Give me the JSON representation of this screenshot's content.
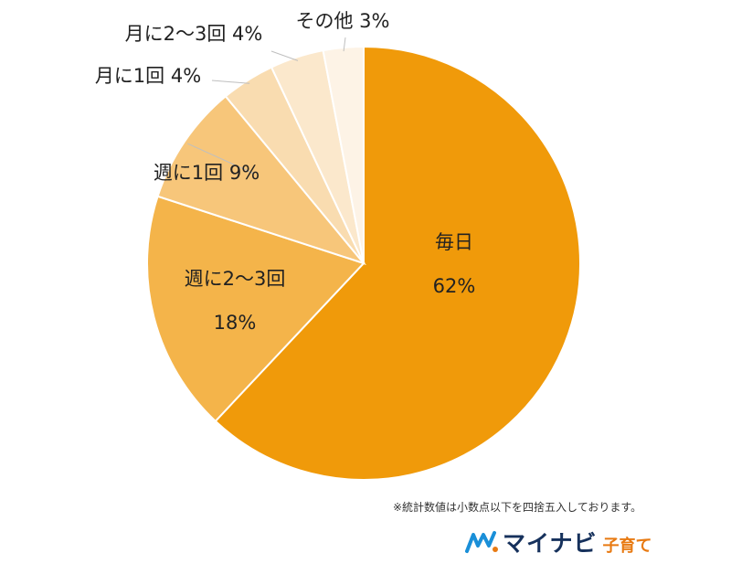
{
  "chart_data": {
    "type": "pie",
    "slices": [
      {
        "name": "毎日",
        "value": 62,
        "label": "62%",
        "color": "#f09a0a"
      },
      {
        "name": "週に2〜3回",
        "value": 18,
        "label": "18%",
        "color": "#f4b44a"
      },
      {
        "name": "週に1回",
        "value": 9,
        "label": "9%",
        "color": "#f7c67a"
      },
      {
        "name": "月に1回",
        "value": 4,
        "label": "4%",
        "color": "#f9dcb0"
      },
      {
        "name": "月に2〜3回",
        "value": 4,
        "label": "4%",
        "color": "#fbe8cc"
      },
      {
        "name": "その他",
        "value": 3,
        "label": "3%",
        "color": "#fdf3e6"
      }
    ],
    "start_angle": "12 o'clock",
    "direction": "clockwise"
  },
  "footnote": "※統計数値は小数点以下を四捨五入しております。",
  "brand": {
    "name": "マイナビ",
    "sub": "子育て",
    "logo_icon": "mynavi-logo-icon",
    "colors": {
      "primary": "#16315c",
      "accent": "#e87a12"
    }
  }
}
